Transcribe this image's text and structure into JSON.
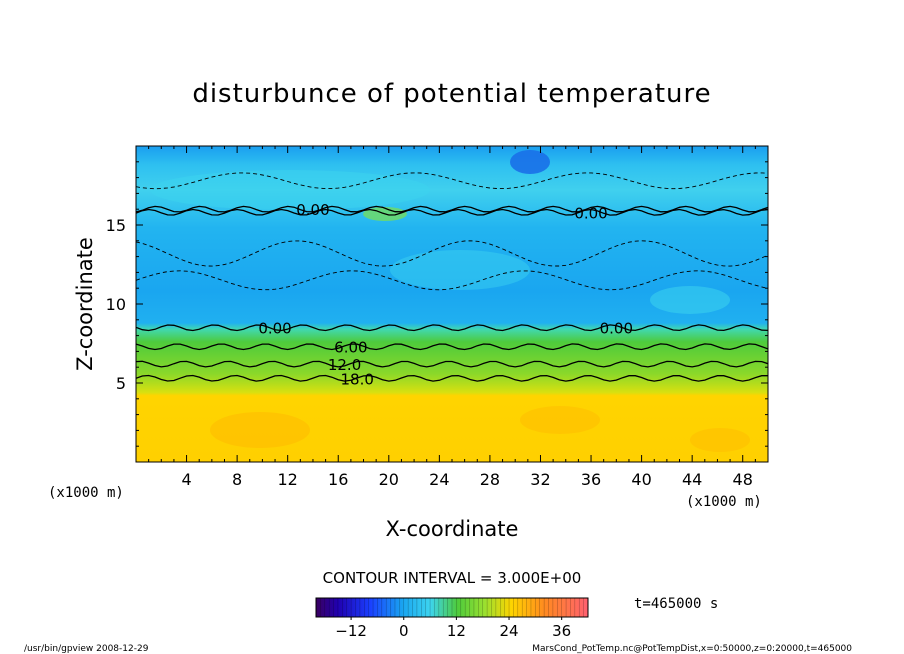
{
  "chart_data": {
    "type": "contour",
    "title": "disturbunce of potential temperature",
    "xlabel": "X-coordinate",
    "ylabel": "Z-coordinate",
    "x_unit": "(x1000 m)",
    "xlim": [
      0,
      50
    ],
    "ylim": [
      0,
      20
    ],
    "x_ticks": [
      4,
      8,
      12,
      16,
      20,
      24,
      28,
      32,
      36,
      40,
      44,
      48
    ],
    "y_ticks": [
      5,
      10,
      15
    ],
    "contour_interval_label": "CONTOUR INTERVAL = 3.000E+00",
    "time_label": "t=465000 s",
    "colorbar": {
      "min": -20,
      "max": 42,
      "ticks": [
        -12,
        0,
        12,
        24,
        36
      ]
    },
    "contours": [
      {
        "level": 18.0,
        "label": "18.0",
        "label_x": 17.5,
        "z": [
          5.3,
          5.3
        ]
      },
      {
        "level": 12.0,
        "label": "12.0",
        "label_x": 16.5,
        "z": [
          6.2,
          6.2
        ]
      },
      {
        "level": 6.0,
        "label": "6.00",
        "label_x": 17.0,
        "z": [
          7.3,
          7.3
        ]
      },
      {
        "level": 0.0,
        "label": "0.00",
        "label_x": 11.0,
        "z": [
          8.5,
          8.5
        ]
      },
      {
        "level": 0.0,
        "label": "0.00",
        "label_x": 38.0,
        "z": [
          8.5,
          8.5
        ]
      },
      {
        "level": 0.0,
        "label": "0.00",
        "label_x": 14.0,
        "z": [
          16.0,
          16.0
        ]
      },
      {
        "level": 0.0,
        "label": "0.00",
        "label_x": 36.0,
        "z": [
          15.8,
          15.8
        ]
      }
    ],
    "colors": {
      "upper_region": "#1aa6f0",
      "cyan_patch": "#3dd4ef",
      "green_band": "#4ecb3c",
      "lower_region": "#ffd400",
      "frame": "#000000"
    }
  },
  "footer": {
    "left": "/usr/bin/gpview   2008-12-29",
    "right": "MarsCond_PotTemp.nc@PotTempDist,x=0:50000,z=0:20000,t=465000"
  }
}
